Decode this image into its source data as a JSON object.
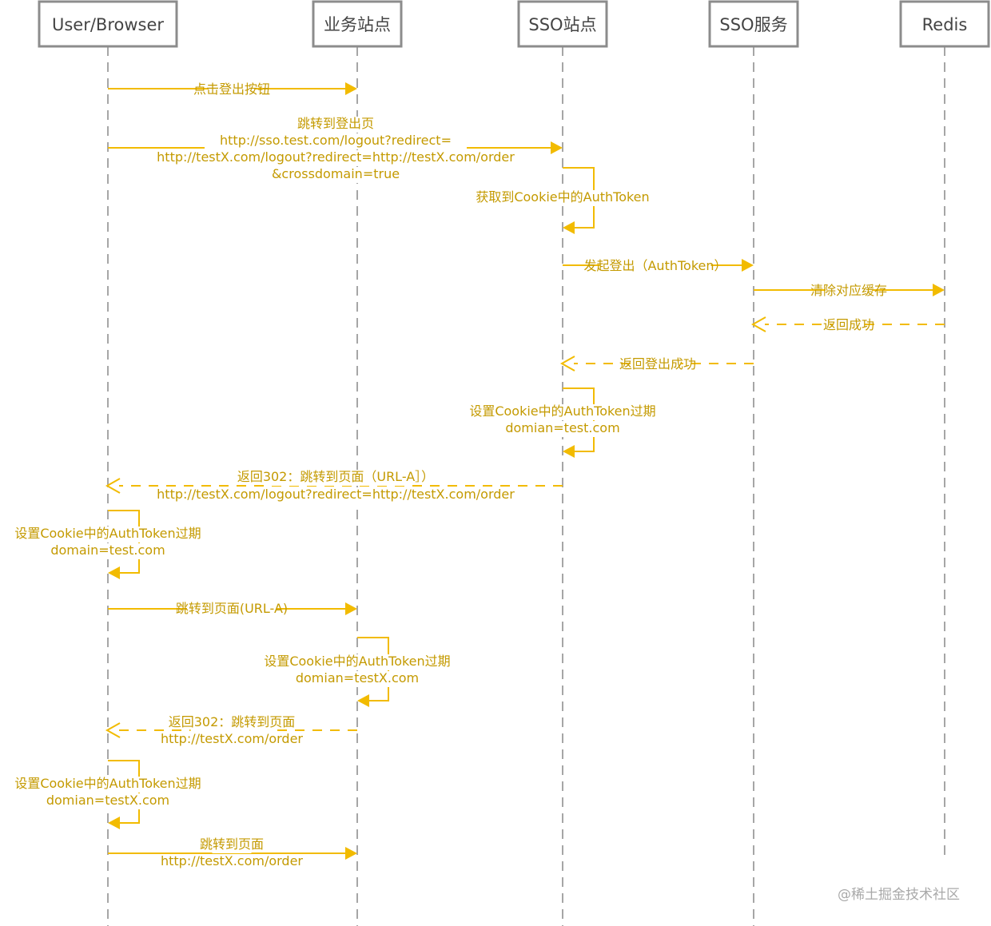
{
  "actors": [
    {
      "id": "browser",
      "label": "User/Browser"
    },
    {
      "id": "biz",
      "label": "业务站点"
    },
    {
      "id": "sso_site",
      "label": "SSO站点"
    },
    {
      "id": "sso_svc",
      "label": "SSO服务"
    },
    {
      "id": "redis",
      "label": "Redis"
    }
  ],
  "messages": [
    {
      "name": "msg-click-logout",
      "kind": "call",
      "from": "browser",
      "to": "biz",
      "lines": [
        "点击登出按钮"
      ]
    },
    {
      "name": "msg-redirect-logout",
      "kind": "call",
      "from": "browser",
      "to": "sso_site",
      "lines": [
        "跳转到登出页",
        "http://sso.test.com/logout?redirect=",
        "http://testX.com/logout?redirect=http://testX.com/order",
        "&crossdomain=true"
      ]
    },
    {
      "name": "msg-get-authtoken",
      "kind": "self",
      "from": "sso_site",
      "to": "sso_site",
      "lines": [
        "获取到Cookie中的AuthToken"
      ]
    },
    {
      "name": "msg-start-logout",
      "kind": "call",
      "from": "sso_site",
      "to": "sso_svc",
      "lines": [
        "发起登出（AuthToken）"
      ]
    },
    {
      "name": "msg-clear-cache",
      "kind": "call",
      "from": "sso_svc",
      "to": "redis",
      "lines": [
        "清除对应缓存"
      ]
    },
    {
      "name": "msg-return-success",
      "kind": "return",
      "from": "redis",
      "to": "sso_svc",
      "lines": [
        "返回成功"
      ]
    },
    {
      "name": "msg-return-logout-success",
      "kind": "return",
      "from": "sso_svc",
      "to": "sso_site",
      "lines": [
        "返回登出成功"
      ]
    },
    {
      "name": "msg-expire-sso-cookie",
      "kind": "self",
      "from": "sso_site",
      "to": "sso_site",
      "lines": [
        "设置Cookie中的AuthToken过期",
        "domian=test.com"
      ]
    },
    {
      "name": "msg-return-302-url-a",
      "kind": "return",
      "from": "sso_site",
      "to": "browser",
      "lines": [
        "返回302：跳转到页面（URL-A］）",
        "http://testX.com/logout?redirect=http://testX.com/order"
      ]
    },
    {
      "name": "msg-expire-browser-cookie-1",
      "kind": "self",
      "from": "browser",
      "to": "browser",
      "lines": [
        "设置Cookie中的AuthToken过期",
        "domain=test.com"
      ]
    },
    {
      "name": "msg-goto-url-a",
      "kind": "call",
      "from": "browser",
      "to": "biz",
      "lines": [
        "跳转到页面(URL-A)"
      ]
    },
    {
      "name": "msg-expire-biz-cookie",
      "kind": "self",
      "from": "biz",
      "to": "biz",
      "lines": [
        "设置Cookie中的AuthToken过期",
        "domian=testX.com"
      ]
    },
    {
      "name": "msg-return-302-order",
      "kind": "return",
      "from": "biz",
      "to": "browser",
      "lines": [
        "返回302：跳转到页面",
        "http://testX.com/order"
      ]
    },
    {
      "name": "msg-expire-browser-cookie-2",
      "kind": "self",
      "from": "browser",
      "to": "browser",
      "lines": [
        "设置Cookie中的AuthToken过期",
        "domian=testX.com"
      ]
    },
    {
      "name": "msg-goto-order",
      "kind": "call",
      "from": "browser",
      "to": "biz",
      "lines": [
        "跳转到页面",
        "http://testX.com/order"
      ]
    }
  ],
  "watermark": "@稀土掘金技术社区",
  "colors": {
    "arrow": "#f2bb00",
    "label": "#c49a00",
    "box_border": "#8c8c8c",
    "lifeline": "#a6a6a6"
  }
}
